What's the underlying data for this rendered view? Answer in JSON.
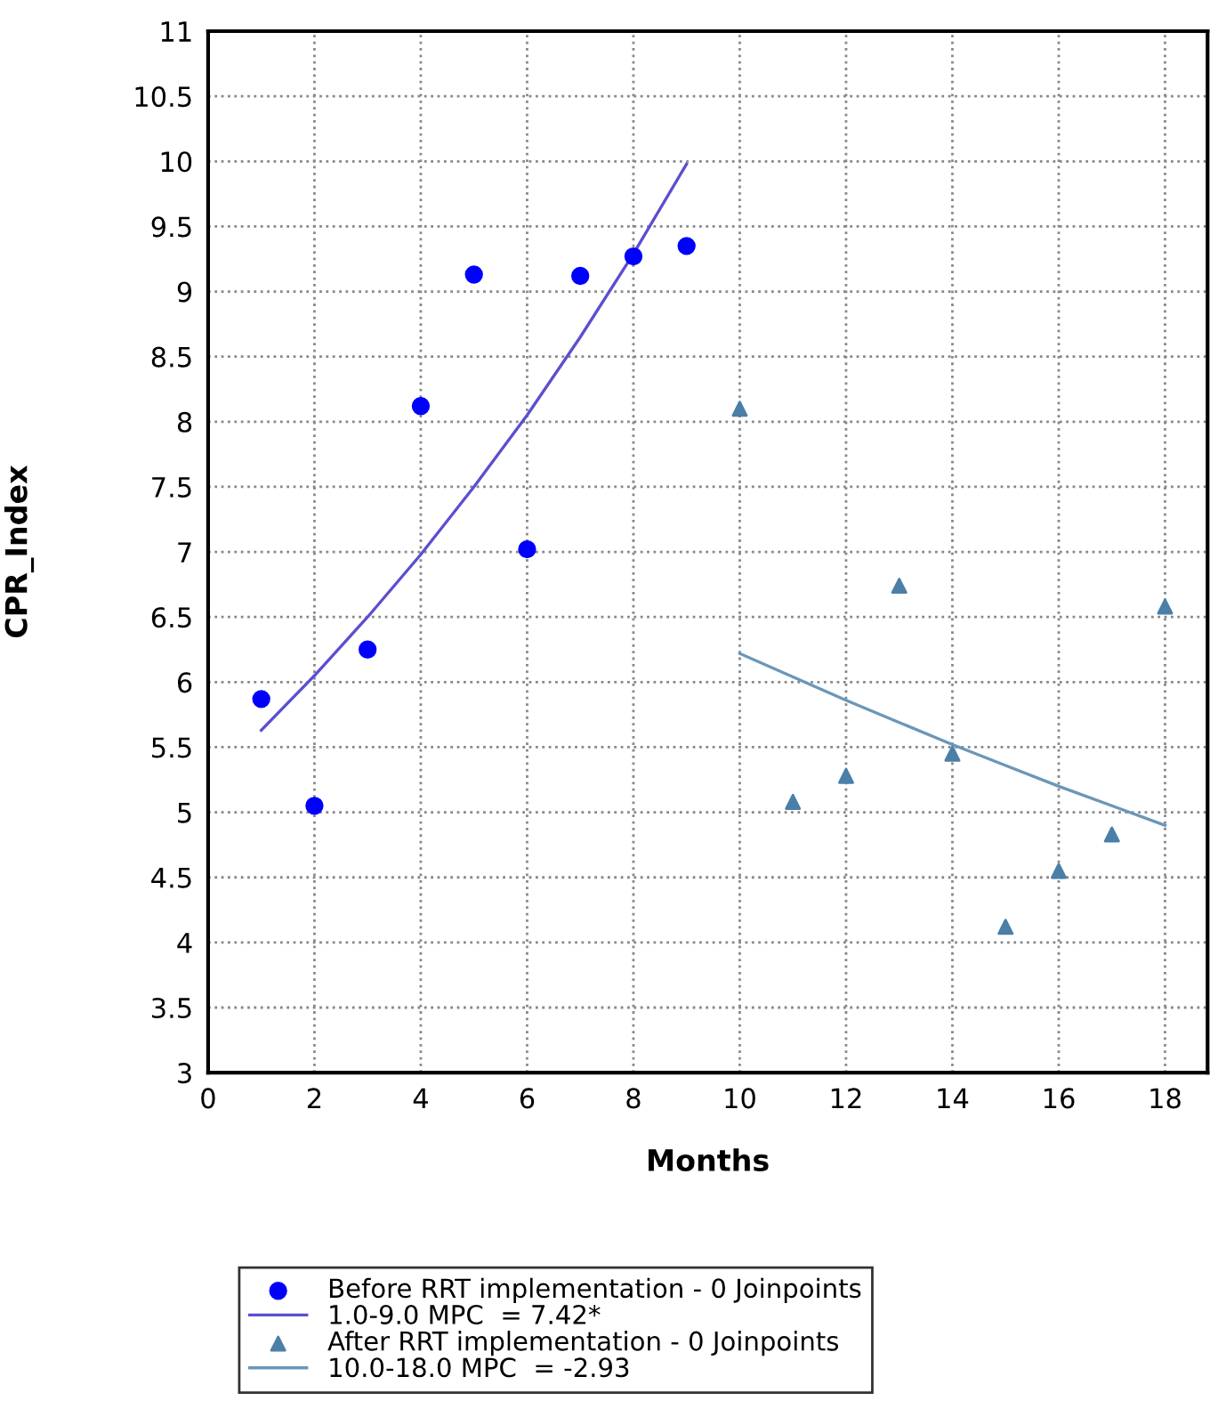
{
  "chart_data": {
    "type": "scatter",
    "xlabel": "Months",
    "ylabel": "CPR_Index",
    "xlim": [
      0,
      18.8
    ],
    "xticks": [
      0,
      2,
      4,
      6,
      8,
      10,
      12,
      14,
      16,
      18
    ],
    "ylim": [
      3,
      11
    ],
    "yticks": [
      3,
      3.5,
      4,
      4.5,
      5,
      5.5,
      6,
      6.5,
      7,
      7.5,
      8,
      8.5,
      9,
      9.5,
      10,
      10.5,
      11
    ],
    "grid": true,
    "legend": "bottom",
    "series": [
      {
        "name": "Before RRT implementation - 0 Joinpoints",
        "marker": "circle",
        "color": "#0000ff",
        "x": [
          1,
          2,
          3,
          4,
          5,
          6,
          7,
          8,
          9
        ],
        "values": [
          5.87,
          5.05,
          6.25,
          8.12,
          9.13,
          7.02,
          9.12,
          9.27,
          9.35
        ]
      },
      {
        "name": "1.0-9.0 MPC  = 7.42*",
        "type": "line",
        "marker": "none",
        "color": "#5a4fd0",
        "x": [
          1,
          2,
          3,
          4,
          5,
          6,
          7,
          8,
          9
        ],
        "values": [
          5.63,
          6.05,
          6.5,
          6.98,
          7.5,
          8.05,
          8.65,
          9.29,
          9.98
        ]
      },
      {
        "name": "After RRT implementation - 0 Joinpoints",
        "marker": "triangle",
        "color": "#4a7fa8",
        "x": [
          10,
          11,
          12,
          13,
          14,
          15,
          16,
          17,
          18
        ],
        "values": [
          8.1,
          5.08,
          5.28,
          6.74,
          5.45,
          4.12,
          4.55,
          4.83,
          6.58
        ]
      },
      {
        "name": "10.0-18.0 MPC  = -2.93",
        "type": "line",
        "marker": "none",
        "color": "#6a97b8",
        "x": [
          10,
          11,
          12,
          13,
          14,
          15,
          16,
          17,
          18
        ],
        "values": [
          6.22,
          6.04,
          5.86,
          5.69,
          5.52,
          5.36,
          5.2,
          5.05,
          4.9
        ]
      }
    ]
  }
}
